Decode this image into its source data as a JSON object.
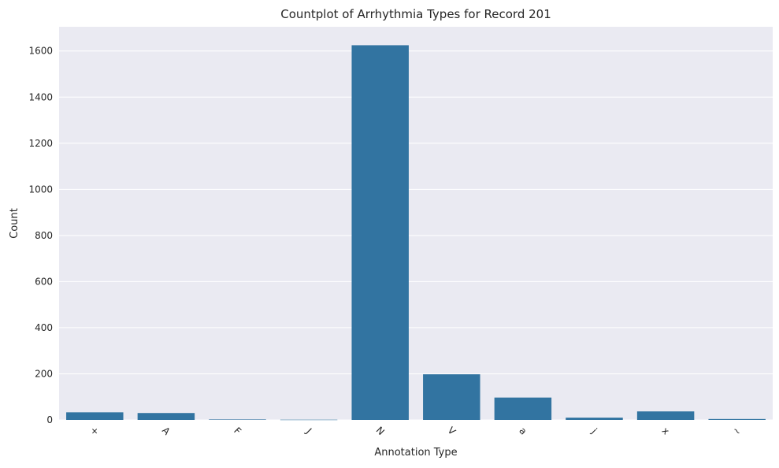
{
  "chart_data": {
    "type": "bar",
    "title": "Countplot of Arrhythmia Types for Record 201",
    "xlabel": "Annotation Type",
    "ylabel": "Count",
    "categories": [
      "+",
      "A",
      "F",
      "J",
      "N",
      "V",
      "a",
      "j",
      "x",
      "~"
    ],
    "values": [
      33,
      30,
      2,
      1,
      1625,
      198,
      97,
      10,
      37,
      4
    ],
    "ylim": [
      0,
      1705
    ],
    "yticks": [
      0,
      200,
      400,
      600,
      800,
      1000,
      1200,
      1400,
      1600
    ],
    "grid": true,
    "legend": "none",
    "colors": {
      "bar": "#3274a1",
      "background": "#eaeaf2",
      "grid": "#ffffff"
    }
  }
}
